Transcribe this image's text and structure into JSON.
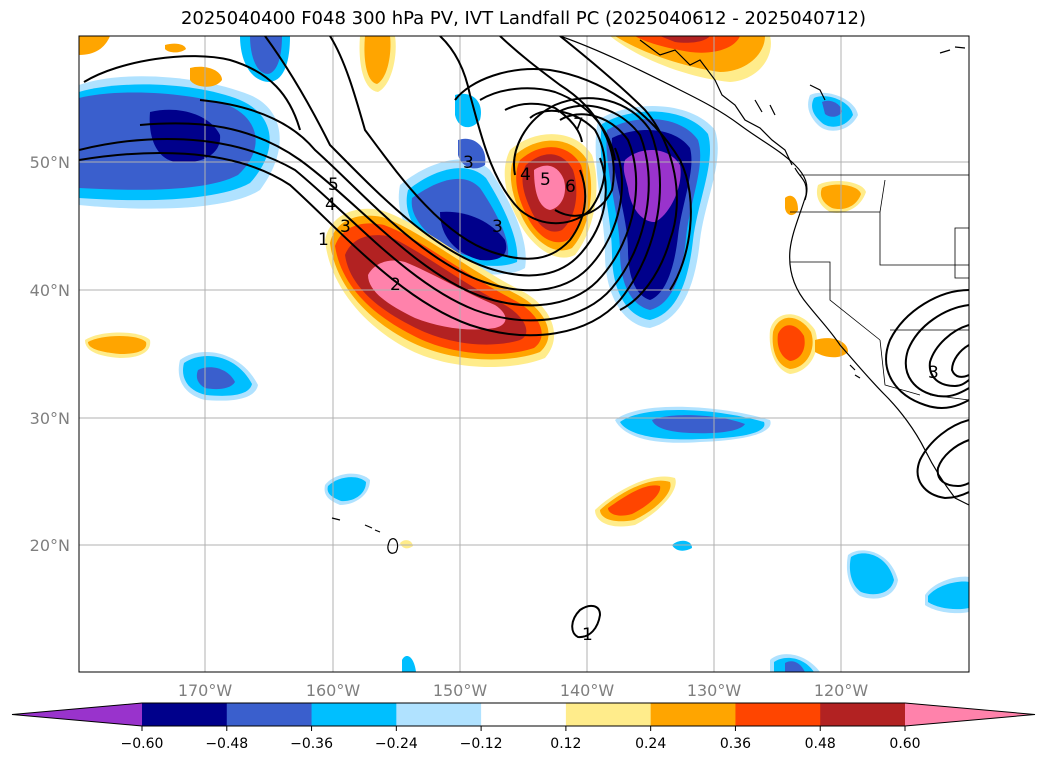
{
  "title": "2025040400 F048 300 hPa PV, IVT Landfall PC (2025040612 - 2025040712)",
  "lat_labels": [
    "50°N",
    "40°N",
    "30°N",
    "20°N"
  ],
  "lon_labels": [
    "170°W",
    "160°W",
    "150°W",
    "140°W",
    "130°W",
    "120°W"
  ],
  "colorbar": {
    "colors": [
      "#9933cc",
      "#00008b",
      "#3a5fcd",
      "#00bfff",
      "#b0e2ff",
      "#ffffff",
      "#ffec8b",
      "#ffa500",
      "#ff4500",
      "#b22222",
      "#ff82ab"
    ],
    "tick_labels": [
      "−0.60",
      "−0.48",
      "−0.36",
      "−0.24",
      "−0.12",
      "0.12",
      "0.24",
      "0.36",
      "0.48",
      "0.60"
    ]
  },
  "contour_labels": [
    "1",
    "2",
    "3",
    "4",
    "5",
    "6",
    "7",
    "3",
    "4",
    "5",
    "3",
    "1",
    "3"
  ],
  "colors": {
    "grid": "#b0b0b0",
    "frame": "#000000"
  }
}
